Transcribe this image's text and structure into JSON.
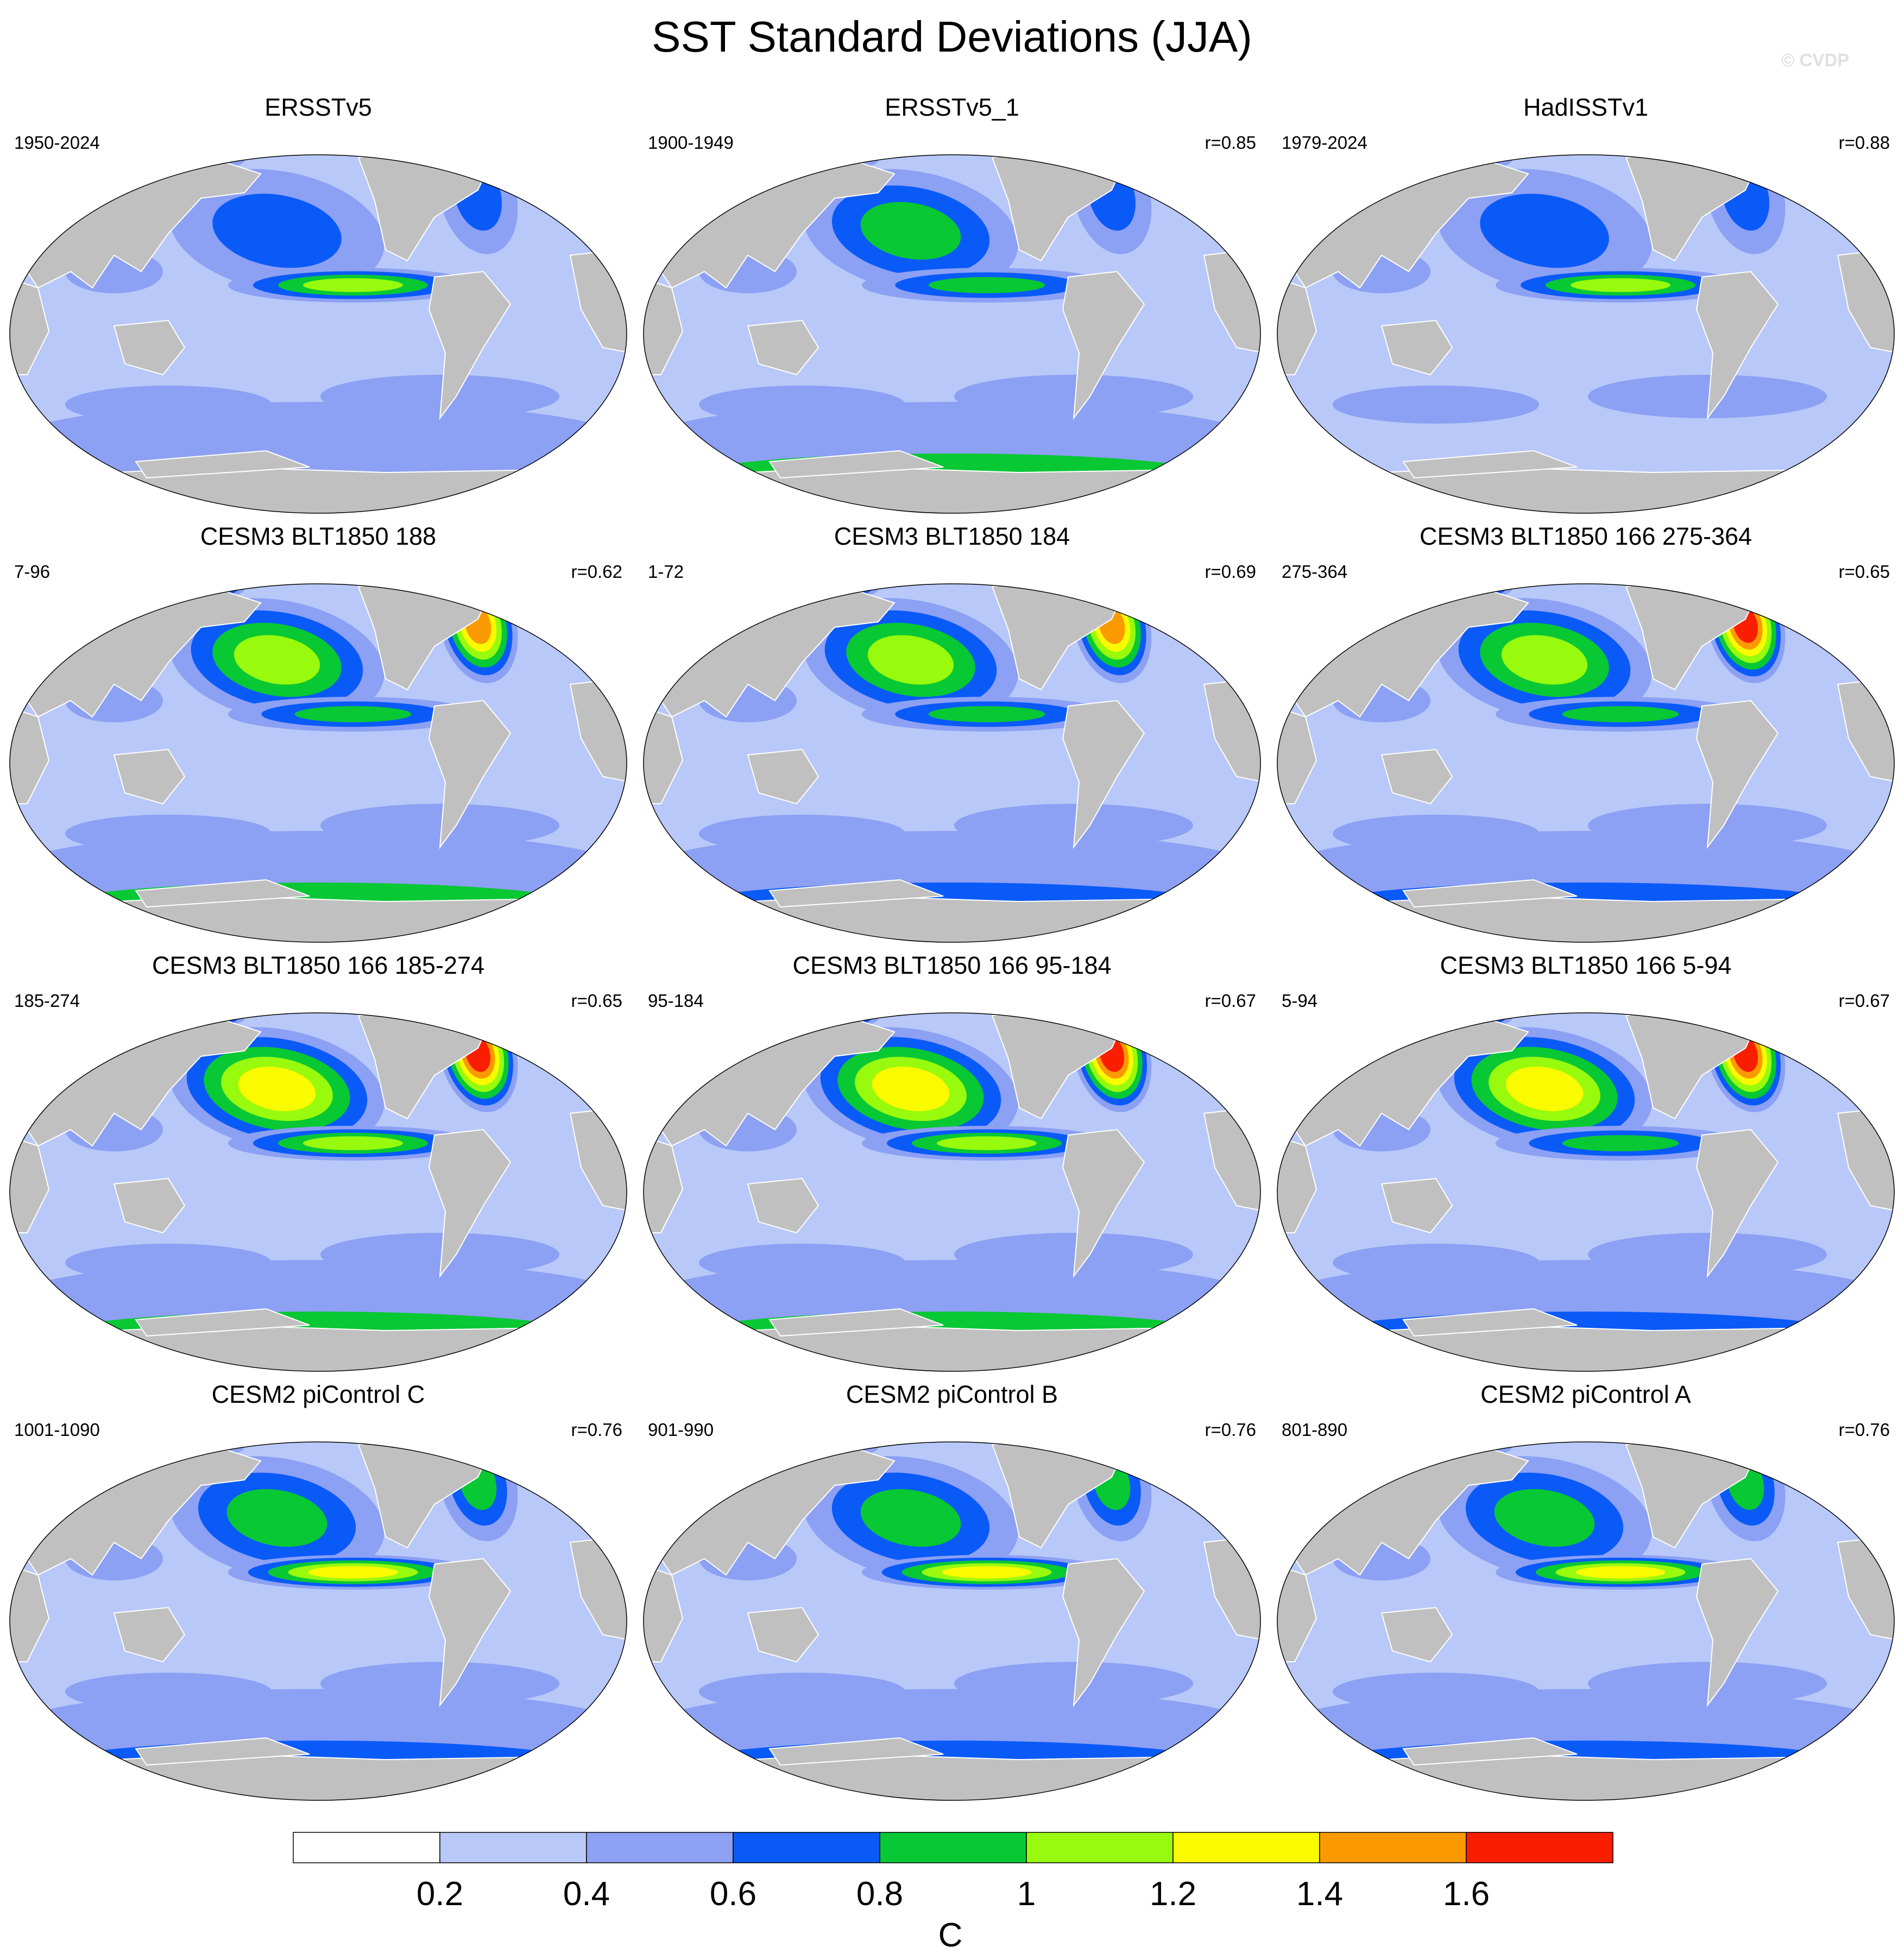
{
  "title": "SST Standard Deviations (JJA)",
  "watermark": "© CVDP",
  "colorbar": {
    "units": "C",
    "ticks": [
      "0.2",
      "0.4",
      "0.6",
      "0.8",
      "1",
      "1.2",
      "1.4",
      "1.6"
    ],
    "colors": [
      "#ffffff",
      "#b8c8f8",
      "#8ca0f4",
      "#0a5af8",
      "#08c834",
      "#98fa0c",
      "#fafa00",
      "#fa9a00",
      "#fa1e00"
    ]
  },
  "map_colors": {
    "land": "#c0c0c0",
    "coast": "#ffffff"
  },
  "panels": [
    {
      "title": "ERSSTv5",
      "period": "1950-2024",
      "corr": "",
      "levels": {
        "npac": 3,
        "natl": 3,
        "nino": 5,
        "so": 2,
        "arctic": 5
      }
    },
    {
      "title": "ERSSTv5_1",
      "period": "1900-1949",
      "corr": "r=0.85",
      "levels": {
        "npac": 4,
        "natl": 3,
        "nino": 4,
        "so": 4,
        "arctic": 5
      }
    },
    {
      "title": "HadISSTv1",
      "period": "1979-2024",
      "corr": "r=0.88",
      "levels": {
        "npac": 3,
        "natl": 3,
        "nino": 5,
        "so": 1,
        "arctic": 5
      }
    },
    {
      "title": "CESM3 BLT1850 188",
      "period": "7-96",
      "corr": "r=0.62",
      "levels": {
        "npac": 5,
        "natl": 7,
        "nino": 4,
        "so": 4,
        "arctic": 8
      }
    },
    {
      "title": "CESM3 BLT1850 184",
      "period": "1-72",
      "corr": "r=0.69",
      "levels": {
        "npac": 5,
        "natl": 7,
        "nino": 4,
        "so": 3,
        "arctic": 8
      }
    },
    {
      "title": "CESM3 BLT1850 166 275-364",
      "period": "275-364",
      "corr": "r=0.65",
      "levels": {
        "npac": 5,
        "natl": 8,
        "nino": 4,
        "so": 3,
        "arctic": 8
      }
    },
    {
      "title": "CESM3 BLT1850 166 185-274",
      "period": "185-274",
      "corr": "r=0.65",
      "levels": {
        "npac": 6,
        "natl": 8,
        "nino": 5,
        "so": 4,
        "arctic": 8
      }
    },
    {
      "title": "CESM3 BLT1850 166 95-184",
      "period": "95-184",
      "corr": "r=0.67",
      "levels": {
        "npac": 6,
        "natl": 8,
        "nino": 5,
        "so": 4,
        "arctic": 8
      }
    },
    {
      "title": "CESM3 BLT1850 166 5-94",
      "period": "5-94",
      "corr": "r=0.67",
      "levels": {
        "npac": 6,
        "natl": 8,
        "nino": 4,
        "so": 3,
        "arctic": 8
      }
    },
    {
      "title": "CESM2 piControl C",
      "period": "1001-1090",
      "corr": "r=0.76",
      "levels": {
        "npac": 4,
        "natl": 4,
        "nino": 6,
        "so": 3,
        "arctic": 5
      }
    },
    {
      "title": "CESM2 piControl B",
      "period": "901-990",
      "corr": "r=0.76",
      "levels": {
        "npac": 4,
        "natl": 4,
        "nino": 6,
        "so": 3,
        "arctic": 5
      }
    },
    {
      "title": "CESM2 piControl A",
      "period": "801-890",
      "corr": "r=0.76",
      "levels": {
        "npac": 4,
        "natl": 4,
        "nino": 6,
        "so": 3,
        "arctic": 5
      }
    }
  ]
}
